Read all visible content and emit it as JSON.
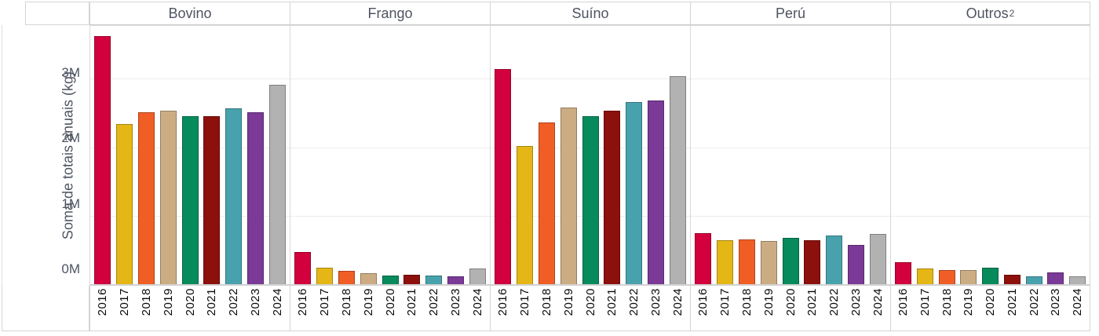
{
  "chart_data": {
    "type": "bar",
    "title": "",
    "ylabel": "Soma de totais anuais (kg)",
    "yticks": [
      "0M",
      "1M",
      "2M",
      "3M"
    ],
    "ylim_millions": [
      0,
      3.76
    ],
    "unit": "kg, shown in millions (M)",
    "grid": "horizontal gridlines at 1M intervals",
    "legend": "none (bars colored by year)",
    "categories": [
      "2016",
      "2017",
      "2018",
      "2019",
      "2020",
      "2021",
      "2022",
      "2023",
      "2024"
    ],
    "year_colors": {
      "2016": "#d2003c",
      "2017": "#e5b716",
      "2018": "#f05e26",
      "2019": "#ccad83",
      "2020": "#078a5c",
      "2021": "#8c100c",
      "2022": "#48a2ad",
      "2023": "#7b3a97",
      "2024": "#b3b2b2"
    },
    "facets": [
      {
        "label": "Bovino",
        "values_millions": [
          3.6,
          2.33,
          2.5,
          2.52,
          2.44,
          2.44,
          2.55,
          2.5,
          2.9
        ]
      },
      {
        "label": "Frango",
        "values_millions": [
          0.47,
          0.24,
          0.19,
          0.16,
          0.12,
          0.14,
          0.12,
          0.11,
          0.23
        ]
      },
      {
        "label": "Suíno",
        "values_millions": [
          3.12,
          2.01,
          2.35,
          2.57,
          2.44,
          2.52,
          2.65,
          2.67,
          3.02
        ]
      },
      {
        "label": "Perú",
        "values_millions": [
          0.74,
          0.64,
          0.65,
          0.63,
          0.67,
          0.64,
          0.71,
          0.57,
          0.73
        ]
      },
      {
        "label": "Outros²",
        "values_millions": [
          0.32,
          0.23,
          0.21,
          0.21,
          0.24,
          0.14,
          0.11,
          0.17,
          0.11
        ]
      }
    ]
  },
  "colors": {
    "muted_text": "#4e5460",
    "axis_text": "#0a0a0a",
    "border": "#d5d5d5",
    "gridline": "#ededed",
    "background": "#ffffff"
  }
}
